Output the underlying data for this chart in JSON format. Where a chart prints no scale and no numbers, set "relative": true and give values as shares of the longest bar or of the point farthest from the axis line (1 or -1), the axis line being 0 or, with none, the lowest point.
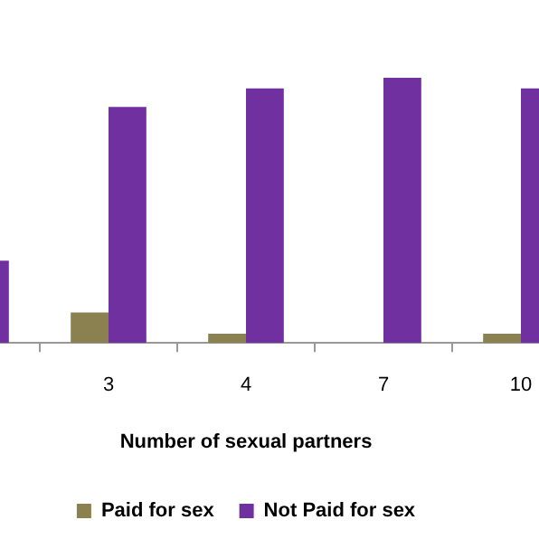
{
  "chart_data": {
    "type": "bar",
    "relative": true,
    "xlabel": "Number of sexual partners",
    "categories": [
      null,
      "3",
      "4",
      "7",
      "10"
    ],
    "series": [
      {
        "name": "Paid for sex",
        "color": "#8b8150",
        "values": [
          null,
          0.115,
          0.035,
          0,
          0.035
        ]
      },
      {
        "name": "Not Paid for sex",
        "color": "#7030a0",
        "values": [
          0.31,
          0.89,
          0.96,
          1,
          0.96
        ]
      }
    ],
    "legend": "bottom",
    "grid": false
  }
}
